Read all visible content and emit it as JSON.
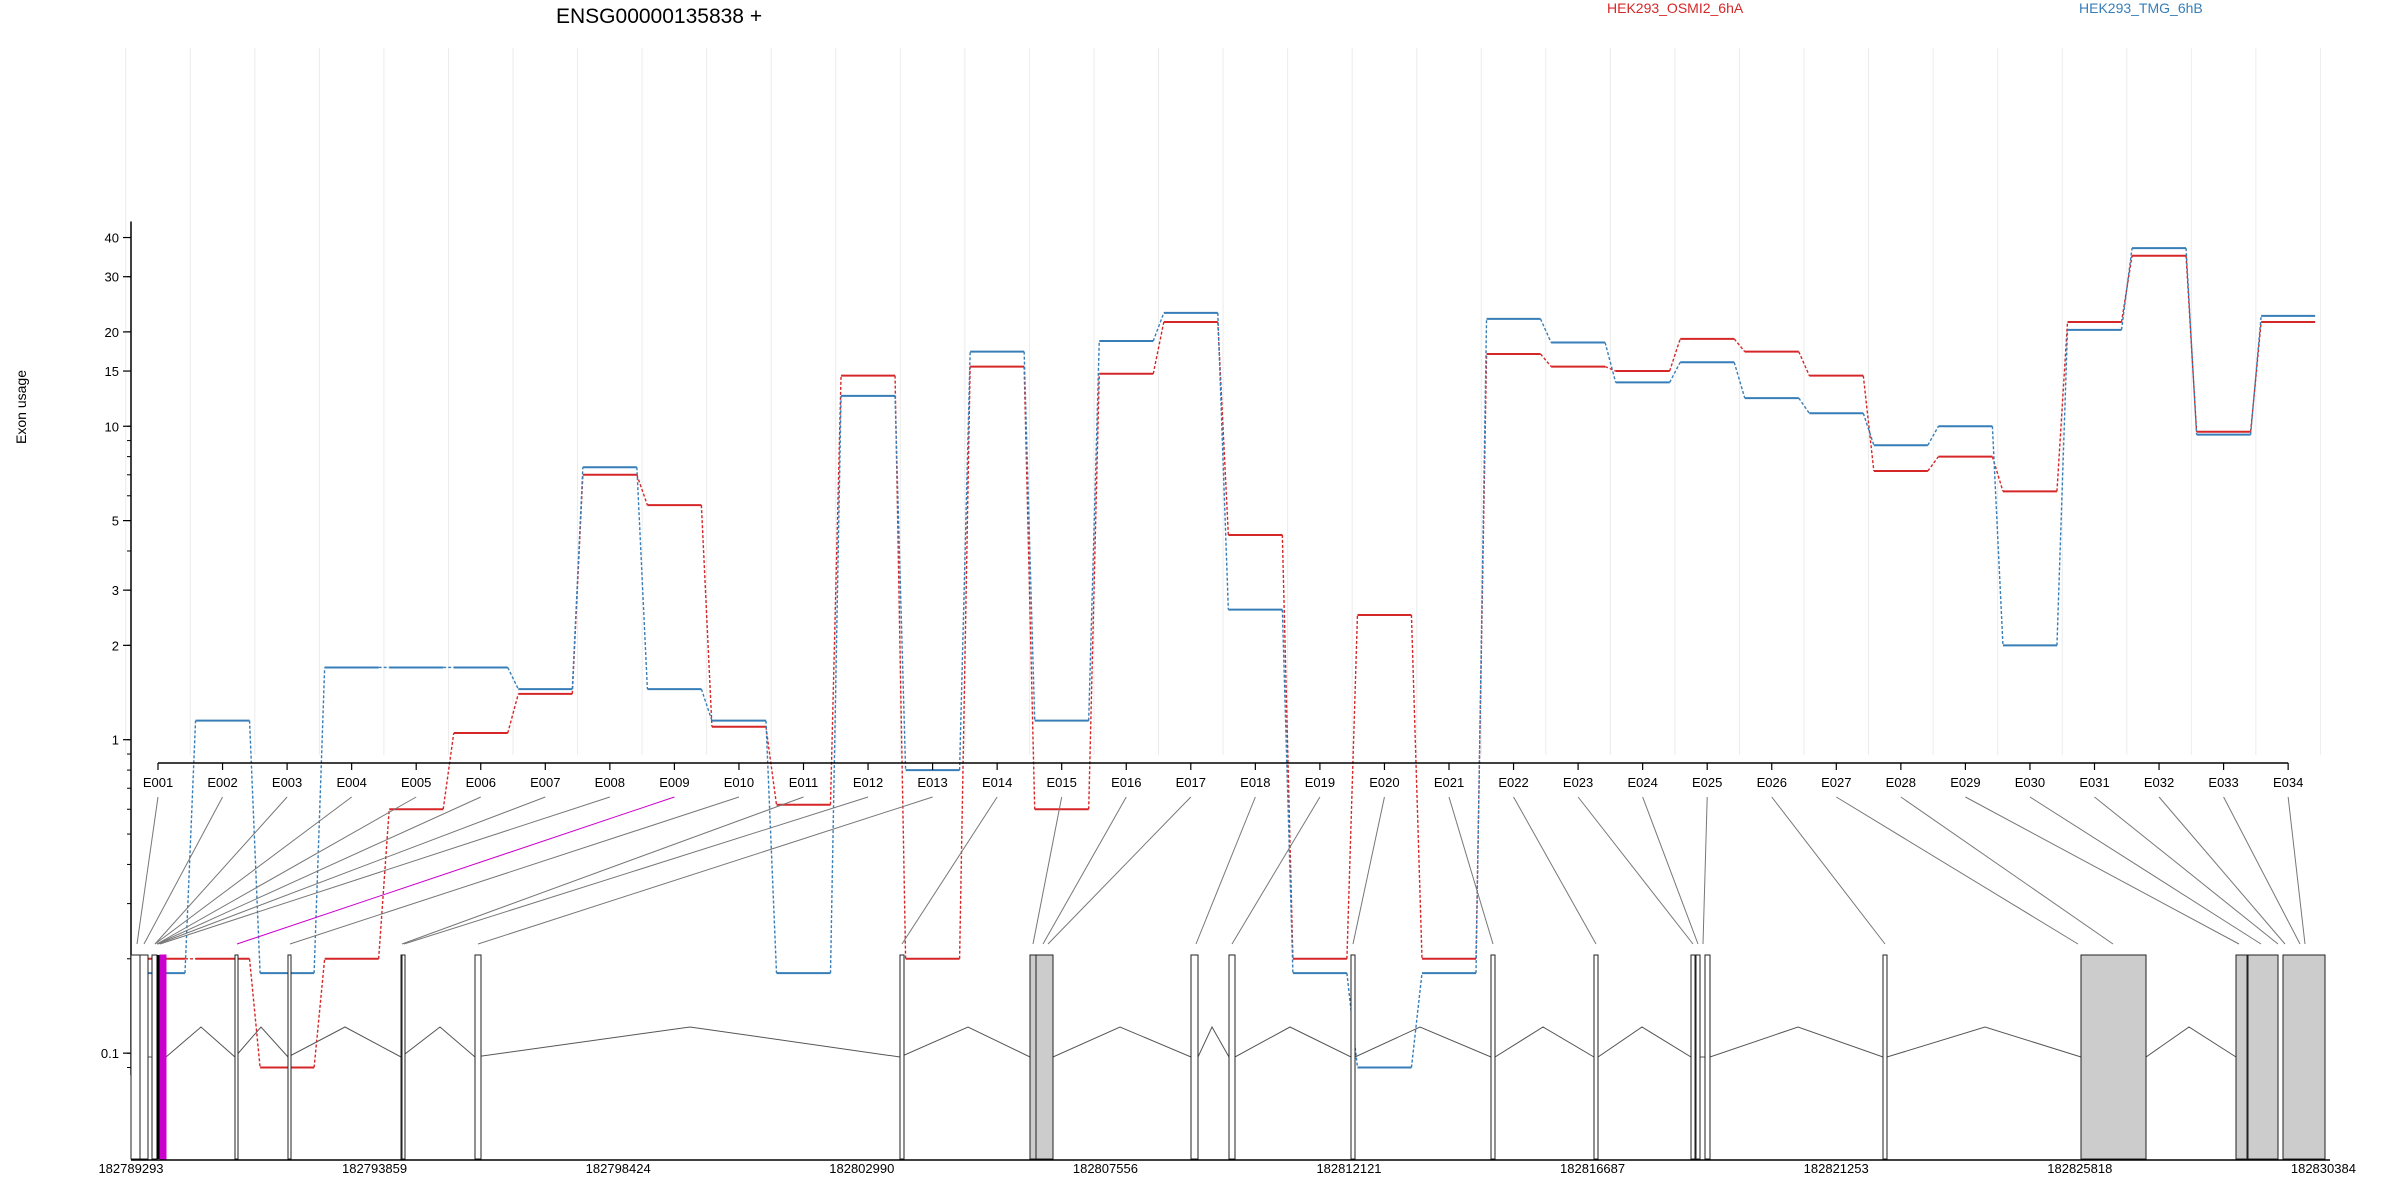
{
  "chart_data": {
    "type": "line",
    "title": "ENSG00000135838 +",
    "ylabel": "Exon usage",
    "xlabel": "",
    "yscale": "log",
    "ylim": [
      0.085,
      45
    ],
    "yticks": [
      0.1,
      1,
      2,
      3,
      5,
      10,
      15,
      20,
      30,
      40
    ],
    "ytick_labels": [
      "0.1",
      "1",
      "2",
      "3",
      "5",
      "10",
      "15",
      "20",
      "30",
      "40"
    ],
    "grid": "vertical",
    "legend": "top",
    "categories": [
      "E001",
      "E002",
      "E003",
      "E004",
      "E005",
      "E006",
      "E007",
      "E008",
      "E009",
      "E010",
      "E011",
      "E012",
      "E013",
      "E014",
      "E015",
      "E016",
      "E017",
      "E018",
      "E019",
      "E020",
      "E021",
      "E022",
      "E023",
      "E024",
      "E025",
      "E026",
      "E027",
      "E028",
      "E029",
      "E030",
      "E031",
      "E032",
      "E033",
      "E034"
    ],
    "series": [
      {
        "name": "HEK293_OSMI2_6hA",
        "color": "#d62728",
        "values": [
          0.2,
          0.2,
          0.09,
          0.2,
          0.6,
          1.05,
          1.4,
          7.0,
          5.6,
          1.1,
          0.62,
          14.5,
          0.2,
          15.5,
          0.6,
          14.7,
          21.5,
          4.5,
          0.2,
          2.5,
          0.2,
          17.0,
          15.5,
          15.0,
          19.0,
          17.3,
          14.5,
          7.2,
          8.0,
          6.2,
          21.5,
          35.0,
          9.6,
          21.5
        ]
      },
      {
        "name": "HEK293_TMG_6hB",
        "color": "#377eb8",
        "values": [
          0.18,
          1.15,
          0.18,
          1.7,
          1.7,
          1.7,
          1.45,
          7.4,
          1.45,
          1.15,
          0.18,
          12.5,
          0.8,
          17.3,
          1.15,
          18.7,
          23.0,
          2.6,
          0.18,
          0.09,
          0.18,
          22.0,
          18.5,
          13.8,
          16.0,
          12.3,
          11.0,
          8.7,
          10.0,
          2.0,
          20.3,
          37.0,
          9.4,
          22.5
        ]
      }
    ],
    "gene_model": {
      "genomic_tick_labels": [
        "182789293",
        "182793859",
        "182798424",
        "182802990",
        "182807556",
        "182812121",
        "182816687",
        "182821253",
        "182825818",
        "182830384"
      ],
      "highlighted_exon": "E009",
      "highlight_color": "#cc00cc",
      "exon_fill": "#cccccc"
    }
  }
}
